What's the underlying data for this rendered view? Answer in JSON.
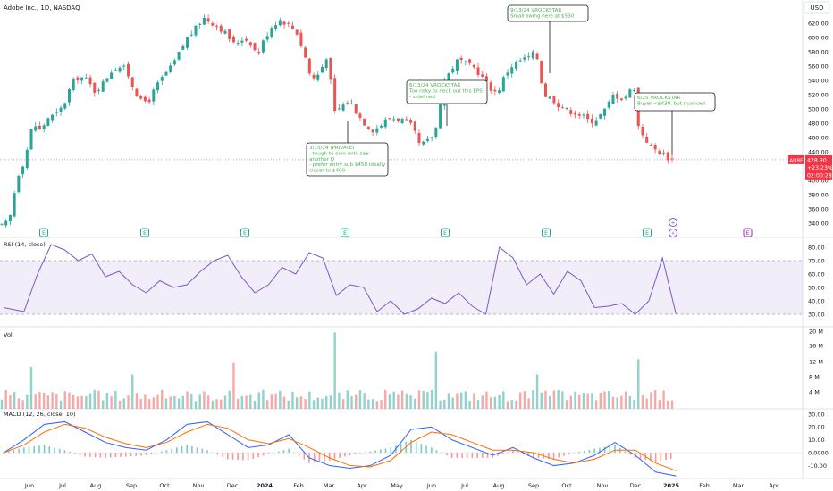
{
  "header": {
    "symbol_line": "Adobe Inc., 1D, NASDAQ"
  },
  "currency": "USD",
  "price_axis": {
    "ticks": [
      "620.00",
      "600.00",
      "580.00",
      "560.00",
      "540.00",
      "520.00",
      "500.00",
      "480.00",
      "460.00",
      "440.00",
      "420.00",
      "400.00",
      "380.00",
      "360.00",
      "340.00"
    ],
    "range": [
      325,
      640
    ]
  },
  "rsi_axis": {
    "ticks": [
      "80.00",
      "70.00",
      "60.00",
      "50.00",
      "40.00",
      "30.00"
    ],
    "range": [
      22,
      86
    ],
    "band": [
      30,
      70
    ]
  },
  "vol_axis": {
    "ticks": [
      "20 M",
      "16 M",
      "12 M",
      "8 M",
      "4 M"
    ]
  },
  "macd_axis": {
    "ticks": [
      "30.00",
      "20.00",
      "10.00",
      "0.0000",
      "-10.00"
    ],
    "range": [
      -20,
      34
    ]
  },
  "time_axis": {
    "labels": [
      "Jun",
      "Jul",
      "Aug",
      "Sep",
      "Oct",
      "Nov",
      "Dec",
      "2024",
      "Feb",
      "Mar",
      "Apr",
      "May",
      "Jun",
      "Jul",
      "Aug",
      "Sep",
      "Oct",
      "Nov",
      "Dec",
      "2025",
      "Feb",
      "Mar",
      "Apr"
    ]
  },
  "last_price": {
    "ticker": "ADBE",
    "price": "428.90",
    "change": "+23.23%",
    "countdown": "02:00:28"
  },
  "earnings_markers": [
    {
      "label": "E"
    },
    {
      "label": "E"
    },
    {
      "label": "E"
    },
    {
      "label": "E"
    },
    {
      "label": "E"
    },
    {
      "label": "E"
    },
    {
      "label": "E"
    }
  ],
  "future_earnings_marker": {
    "label": "E"
  },
  "event_icons": [
    {
      "label": "+"
    },
    {
      "label": "⚡"
    }
  ],
  "annotations": [
    {
      "lines": [
        "3/15/24 (PRIVATE)",
        "- tough to own until see",
        "another Q",
        "- prefer entry sub $450 ideally",
        "closer to $400"
      ]
    },
    {
      "lines": [
        "6/13/24 VROCKSTAR",
        "Too risky to neck out this EPS",
        "- sidelined"
      ]
    },
    {
      "lines": [
        "9/13/24 VROCKSTAR",
        "Small swing here at $530"
      ]
    },
    {
      "lines": [
        "6/25 VROCKSTAR",
        "Buyer <$430, but nuanced"
      ]
    }
  ],
  "indicators": {
    "rsi_label": "RSI (14, close)",
    "vol_label": "Vol",
    "macd_label": "MACD (12, 26, close, 10)"
  },
  "colors": {
    "up": "#26a69a",
    "down": "#ef5350",
    "rsi_line": "#7e57c2",
    "rsi_band": "#7e57c2",
    "macd_line": "#2962ff",
    "signal_line": "#ff6d00",
    "annotation_text": "#4caf50",
    "price_line": "#f23645"
  },
  "chart_data": [
    {
      "type": "candlestick",
      "title": "Adobe Inc., 1D, NASDAQ",
      "ylim": [
        325,
        640
      ],
      "close_path": [
        {
          "date": "2023-05-19",
          "value": 336
        },
        {
          "date": "2023-05-26",
          "value": 345
        },
        {
          "date": "2023-06-02",
          "value": 405
        },
        {
          "date": "2023-06-09",
          "value": 430
        },
        {
          "date": "2023-06-16",
          "value": 480
        },
        {
          "date": "2023-06-23",
          "value": 470
        },
        {
          "date": "2023-06-30",
          "value": 488
        },
        {
          "date": "2023-07-07",
          "value": 492
        },
        {
          "date": "2023-07-14",
          "value": 505
        },
        {
          "date": "2023-07-21",
          "value": 535
        },
        {
          "date": "2023-07-28",
          "value": 546
        },
        {
          "date": "2023-08-04",
          "value": 540
        },
        {
          "date": "2023-08-11",
          "value": 525
        },
        {
          "date": "2023-08-18",
          "value": 535
        },
        {
          "date": "2023-08-25",
          "value": 552
        },
        {
          "date": "2023-09-01",
          "value": 560
        },
        {
          "date": "2023-09-08",
          "value": 556
        },
        {
          "date": "2023-09-15",
          "value": 530
        },
        {
          "date": "2023-09-22",
          "value": 510
        },
        {
          "date": "2023-09-29",
          "value": 512
        },
        {
          "date": "2023-10-06",
          "value": 532
        },
        {
          "date": "2023-10-13",
          "value": 548
        },
        {
          "date": "2023-10-20",
          "value": 560
        },
        {
          "date": "2023-10-27",
          "value": 580
        },
        {
          "date": "2023-11-03",
          "value": 600
        },
        {
          "date": "2023-11-10",
          "value": 612
        },
        {
          "date": "2023-11-17",
          "value": 628
        },
        {
          "date": "2023-11-24",
          "value": 622
        },
        {
          "date": "2023-12-01",
          "value": 615
        },
        {
          "date": "2023-12-08",
          "value": 605
        },
        {
          "date": "2023-12-15",
          "value": 590
        },
        {
          "date": "2023-12-22",
          "value": 598
        },
        {
          "date": "2023-12-29",
          "value": 596
        },
        {
          "date": "2024-01-05",
          "value": 575
        },
        {
          "date": "2024-01-12",
          "value": 600
        },
        {
          "date": "2024-01-19",
          "value": 618
        },
        {
          "date": "2024-01-26",
          "value": 625
        },
        {
          "date": "2024-02-02",
          "value": 618
        },
        {
          "date": "2024-02-09",
          "value": 610
        },
        {
          "date": "2024-02-16",
          "value": 580
        },
        {
          "date": "2024-02-23",
          "value": 540
        },
        {
          "date": "2024-03-01",
          "value": 550
        },
        {
          "date": "2024-03-08",
          "value": 575
        },
        {
          "date": "2024-03-15",
          "value": 495
        },
        {
          "date": "2024-03-22",
          "value": 505
        },
        {
          "date": "2024-03-29",
          "value": 510
        },
        {
          "date": "2024-04-05",
          "value": 492
        },
        {
          "date": "2024-04-12",
          "value": 478
        },
        {
          "date": "2024-04-19",
          "value": 470
        },
        {
          "date": "2024-04-26",
          "value": 478
        },
        {
          "date": "2024-05-03",
          "value": 488
        },
        {
          "date": "2024-05-10",
          "value": 486
        },
        {
          "date": "2024-05-17",
          "value": 484
        },
        {
          "date": "2024-05-24",
          "value": 475
        },
        {
          "date": "2024-05-31",
          "value": 448
        },
        {
          "date": "2024-06-07",
          "value": 455
        },
        {
          "date": "2024-06-14",
          "value": 468
        },
        {
          "date": "2024-06-21",
          "value": 535
        },
        {
          "date": "2024-06-28",
          "value": 555
        },
        {
          "date": "2024-07-05",
          "value": 570
        },
        {
          "date": "2024-07-12",
          "value": 562
        },
        {
          "date": "2024-07-19",
          "value": 558
        },
        {
          "date": "2024-07-26",
          "value": 545
        },
        {
          "date": "2024-08-02",
          "value": 530
        },
        {
          "date": "2024-08-09",
          "value": 522
        },
        {
          "date": "2024-08-16",
          "value": 548
        },
        {
          "date": "2024-08-23",
          "value": 562
        },
        {
          "date": "2024-08-30",
          "value": 568
        },
        {
          "date": "2024-09-06",
          "value": 572
        },
        {
          "date": "2024-09-13",
          "value": 580
        },
        {
          "date": "2024-09-20",
          "value": 520
        },
        {
          "date": "2024-09-27",
          "value": 515
        },
        {
          "date": "2024-10-04",
          "value": 505
        },
        {
          "date": "2024-10-11",
          "value": 498
        },
        {
          "date": "2024-10-18",
          "value": 495
        },
        {
          "date": "2024-10-25",
          "value": 490
        },
        {
          "date": "2024-11-01",
          "value": 482
        },
        {
          "date": "2024-11-08",
          "value": 488
        },
        {
          "date": "2024-11-15",
          "value": 500
        },
        {
          "date": "2024-11-22",
          "value": 520
        },
        {
          "date": "2024-11-29",
          "value": 515
        },
        {
          "date": "2024-12-06",
          "value": 520
        },
        {
          "date": "2024-12-10",
          "value": 545
        },
        {
          "date": "2024-12-13",
          "value": 480
        },
        {
          "date": "2024-12-20",
          "value": 460
        },
        {
          "date": "2024-12-27",
          "value": 445
        },
        {
          "date": "2025-01-03",
          "value": 440
        },
        {
          "date": "2025-01-10",
          "value": 432
        },
        {
          "date": "2025-01-14",
          "value": 429
        }
      ]
    },
    {
      "type": "line",
      "title": "RSI (14, close)",
      "ylim": [
        22,
        86
      ],
      "x": [
        0,
        3,
        5,
        7,
        9,
        11,
        13,
        15,
        17,
        19,
        21,
        23,
        25,
        27,
        29,
        31,
        33,
        35,
        37,
        39,
        41,
        43,
        45,
        47,
        49,
        51,
        53,
        55,
        57,
        59,
        61,
        63,
        65,
        67,
        69,
        71,
        73,
        75,
        77,
        79,
        81,
        83,
        85,
        87,
        89,
        91,
        93,
        95,
        97,
        99
      ],
      "values": [
        35,
        32,
        60,
        82,
        78,
        70,
        75,
        58,
        62,
        52,
        46,
        55,
        50,
        52,
        62,
        70,
        74,
        58,
        46,
        52,
        65,
        60,
        76,
        72,
        44,
        52,
        50,
        32,
        40,
        30,
        34,
        42,
        38,
        46,
        36,
        30,
        80,
        72,
        52,
        60,
        45,
        62,
        55,
        35,
        36,
        38,
        30,
        40,
        72,
        30
      ]
    },
    {
      "type": "bar",
      "title": "Vol",
      "unit": "M",
      "ylim": [
        0,
        21
      ],
      "typical_range": [
        2,
        5
      ],
      "spikes": [
        {
          "date": "2023-06-16",
          "value": 11
        },
        {
          "date": "2023-09-15",
          "value": 9
        },
        {
          "date": "2023-12-15",
          "value": 12
        },
        {
          "date": "2024-03-15",
          "value": 20
        },
        {
          "date": "2024-06-14",
          "value": 15
        },
        {
          "date": "2024-09-13",
          "value": 9
        },
        {
          "date": "2024-12-13",
          "value": 13
        }
      ]
    },
    {
      "type": "line",
      "title": "MACD (12, 26, close, 10)",
      "ylim": [
        -20,
        34
      ],
      "x": [
        0,
        3,
        6,
        9,
        12,
        15,
        18,
        21,
        24,
        27,
        30,
        33,
        36,
        39,
        42,
        45,
        48,
        51,
        54,
        57,
        60,
        63,
        66,
        69,
        72,
        75,
        78,
        81,
        84,
        87,
        90,
        93,
        96,
        99
      ],
      "series": [
        {
          "name": "MACD",
          "values": [
            0,
            10,
            22,
            24,
            16,
            8,
            4,
            2,
            10,
            22,
            24,
            14,
            4,
            6,
            14,
            -4,
            -10,
            -12,
            -10,
            -2,
            18,
            20,
            10,
            4,
            -2,
            4,
            -4,
            -10,
            -8,
            -2,
            8,
            -2,
            -15,
            -18
          ]
        },
        {
          "name": "Signal",
          "values": [
            0,
            6,
            16,
            22,
            19,
            12,
            7,
            4,
            8,
            16,
            22,
            19,
            10,
            7,
            11,
            4,
            -4,
            -10,
            -11,
            -6,
            8,
            16,
            14,
            8,
            2,
            2,
            0,
            -5,
            -8,
            -5,
            2,
            2,
            -8,
            -14
          ]
        }
      ]
    }
  ]
}
